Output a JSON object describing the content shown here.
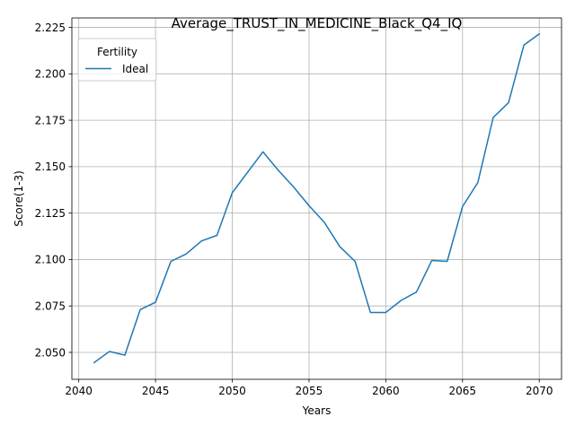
{
  "chart_data": {
    "type": "line",
    "title": "Average_TRUST_IN_MEDICINE_Black_Q4_IQ",
    "xlabel": "Years",
    "ylabel": "Score(1-3)",
    "xlim": [
      2039.55,
      2071.45
    ],
    "ylim": [
      2.0355,
      2.2301
    ],
    "xticks": [
      2040,
      2045,
      2050,
      2055,
      2060,
      2065,
      2070
    ],
    "xtick_labels": [
      "2040",
      "2045",
      "2050",
      "2055",
      "2060",
      "2065",
      "2070"
    ],
    "yticks": [
      2.05,
      2.075,
      2.1,
      2.125,
      2.15,
      2.175,
      2.2,
      2.225
    ],
    "ytick_labels": [
      "2.050",
      "2.075",
      "2.100",
      "2.125",
      "2.150",
      "2.175",
      "2.200",
      "2.225"
    ],
    "grid": true,
    "legend": {
      "title": "Fertility",
      "placement": "top-left"
    },
    "series": [
      {
        "name": "Ideal",
        "color": "#1f77b4",
        "x": [
          2041,
          2042,
          2043,
          2044,
          2045,
          2046,
          2047,
          2048,
          2049,
          2050,
          2051,
          2052,
          2053,
          2054,
          2055,
          2056,
          2057,
          2058,
          2059,
          2060,
          2061,
          2062,
          2063,
          2064,
          2065,
          2066,
          2067,
          2068,
          2069,
          2070
        ],
        "y": [
          2.0445,
          2.0505,
          2.0485,
          2.073,
          2.077,
          2.099,
          2.103,
          2.11,
          2.113,
          2.136,
          2.147,
          2.158,
          2.148,
          2.139,
          2.129,
          2.12,
          2.107,
          2.099,
          2.0715,
          2.0715,
          2.078,
          2.0825,
          2.0995,
          2.099,
          2.1285,
          2.1415,
          2.1765,
          2.1845,
          2.2155,
          2.2215
        ]
      }
    ]
  }
}
